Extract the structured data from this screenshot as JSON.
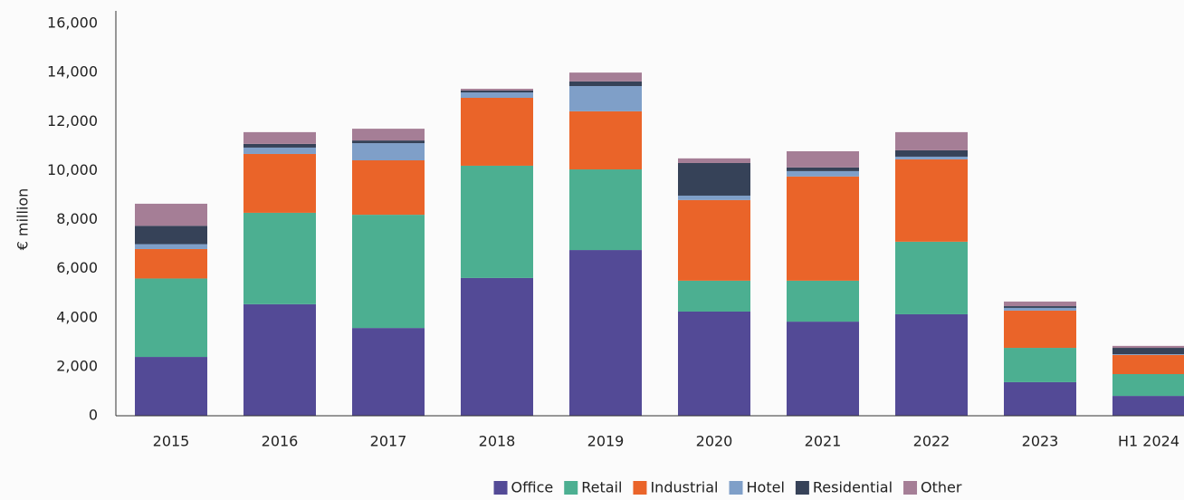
{
  "chart_data": {
    "type": "stacked_bar",
    "y_label": "€ million",
    "categories": [
      "2015",
      "2016",
      "2017",
      "2018",
      "2019",
      "2020",
      "2021",
      "2022",
      "2023",
      "H1 2024"
    ],
    "series": [
      {
        "name": "Office",
        "color": "#534a96",
        "values": [
          2400,
          4550,
          3580,
          5620,
          6760,
          4250,
          3840,
          4140,
          1370,
          810
        ]
      },
      {
        "name": "Retail",
        "color": "#4caf91",
        "values": [
          3200,
          3730,
          4620,
          4580,
          3290,
          1260,
          1670,
          2960,
          1400,
          890
        ]
      },
      {
        "name": "Industrial",
        "color": "#ea6429",
        "values": [
          1200,
          2400,
          2220,
          2770,
          2370,
          3290,
          4250,
          3360,
          1520,
          780
        ]
      },
      {
        "name": "Hotel",
        "color": "#7f9fc8",
        "values": [
          200,
          260,
          700,
          220,
          1030,
          180,
          220,
          110,
          110,
          30
        ]
      },
      {
        "name": "Residential",
        "color": "#364258",
        "values": [
          750,
          150,
          110,
          80,
          190,
          1330,
          150,
          260,
          70,
          260
        ]
      },
      {
        "name": "Other",
        "color": "#a57e96",
        "values": [
          900,
          480,
          480,
          70,
          360,
          190,
          660,
          740,
          190,
          80
        ]
      }
    ],
    "ylim": [
      0,
      16000
    ],
    "yticks": [
      0,
      {
        "value": 2000,
        "label": "2,000"
      },
      {
        "value": 4000,
        "label": "4,000"
      },
      {
        "value": 6000,
        "label": "6,000"
      },
      {
        "value": 8000,
        "label": "8,000"
      },
      {
        "value": 10000,
        "label": "10,000"
      },
      {
        "value": 12000,
        "label": "12,000"
      },
      {
        "value": 14000,
        "label": "14,000"
      },
      {
        "value": 16000,
        "label": "16,000"
      }
    ],
    "grid": false,
    "legend": "bottom"
  }
}
